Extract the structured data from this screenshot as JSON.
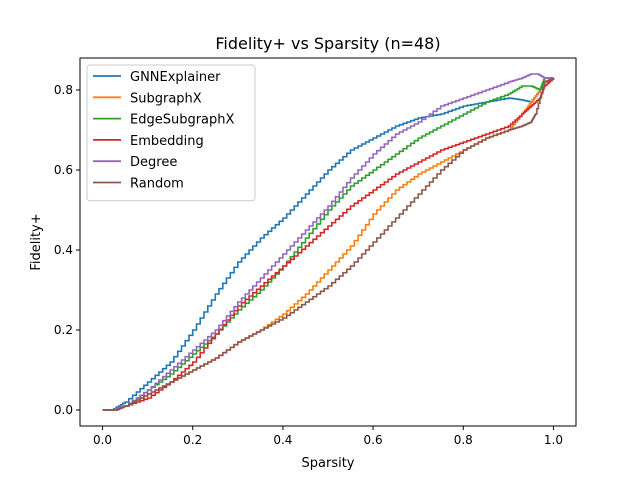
{
  "chart_data": {
    "type": "line",
    "title": "Fidelity+ vs Sparsity (n=48)",
    "xlabel": "Sparsity",
    "ylabel": "Fidelity+",
    "xlim": [
      -0.05,
      1.05
    ],
    "ylim": [
      -0.04,
      0.88
    ],
    "xticks": [
      0.0,
      0.2,
      0.4,
      0.6,
      0.8,
      1.0
    ],
    "xtick_labels": [
      "0.0",
      "0.2",
      "0.4",
      "0.6",
      "0.8",
      "1.0"
    ],
    "yticks": [
      0.0,
      0.2,
      0.4,
      0.6,
      0.8
    ],
    "ytick_labels": [
      "0.0",
      "0.2",
      "0.4",
      "0.6",
      "0.8"
    ],
    "grid": false,
    "legend_position": "top-left",
    "series": [
      {
        "name": "GNNExplainer",
        "color": "#1f77b4",
        "x": [
          0.0,
          0.02,
          0.05,
          0.1,
          0.15,
          0.2,
          0.25,
          0.3,
          0.35,
          0.4,
          0.45,
          0.5,
          0.55,
          0.6,
          0.65,
          0.7,
          0.75,
          0.8,
          0.85,
          0.9,
          0.93,
          0.95,
          0.97,
          0.98,
          1.0
        ],
        "y": [
          0.0,
          0.0,
          0.02,
          0.07,
          0.12,
          0.2,
          0.29,
          0.37,
          0.43,
          0.48,
          0.54,
          0.6,
          0.65,
          0.68,
          0.71,
          0.73,
          0.74,
          0.76,
          0.77,
          0.78,
          0.775,
          0.77,
          0.8,
          0.83,
          0.83
        ]
      },
      {
        "name": "SubgraphX",
        "color": "#ff7f0e",
        "x": [
          0.0,
          0.03,
          0.05,
          0.1,
          0.15,
          0.2,
          0.25,
          0.3,
          0.35,
          0.4,
          0.45,
          0.5,
          0.55,
          0.6,
          0.65,
          0.7,
          0.75,
          0.8,
          0.85,
          0.9,
          0.93,
          0.95,
          0.97,
          0.98,
          1.0
        ],
        "y": [
          0.0,
          0.0,
          0.01,
          0.04,
          0.07,
          0.1,
          0.13,
          0.17,
          0.2,
          0.24,
          0.29,
          0.35,
          0.41,
          0.49,
          0.55,
          0.59,
          0.62,
          0.65,
          0.68,
          0.7,
          0.74,
          0.77,
          0.8,
          0.82,
          0.83
        ]
      },
      {
        "name": "EdgeSubgraphX",
        "color": "#2ca02c",
        "x": [
          0.0,
          0.02,
          0.05,
          0.1,
          0.15,
          0.2,
          0.25,
          0.3,
          0.35,
          0.4,
          0.45,
          0.5,
          0.55,
          0.6,
          0.65,
          0.7,
          0.75,
          0.8,
          0.85,
          0.9,
          0.93,
          0.95,
          0.97,
          0.98,
          1.0
        ],
        "y": [
          0.0,
          0.0,
          0.01,
          0.05,
          0.09,
          0.14,
          0.19,
          0.25,
          0.3,
          0.36,
          0.43,
          0.5,
          0.56,
          0.6,
          0.64,
          0.68,
          0.71,
          0.74,
          0.77,
          0.79,
          0.81,
          0.81,
          0.8,
          0.83,
          0.83
        ]
      },
      {
        "name": "Embedding",
        "color": "#d62728",
        "x": [
          0.0,
          0.03,
          0.05,
          0.1,
          0.15,
          0.2,
          0.25,
          0.3,
          0.35,
          0.4,
          0.45,
          0.5,
          0.55,
          0.6,
          0.65,
          0.7,
          0.75,
          0.8,
          0.85,
          0.9,
          0.93,
          0.95,
          0.97,
          0.98,
          1.0
        ],
        "y": [
          0.0,
          0.0,
          0.01,
          0.03,
          0.07,
          0.12,
          0.19,
          0.26,
          0.31,
          0.36,
          0.41,
          0.46,
          0.51,
          0.55,
          0.59,
          0.62,
          0.65,
          0.67,
          0.69,
          0.71,
          0.74,
          0.76,
          0.78,
          0.81,
          0.83
        ]
      },
      {
        "name": "Degree",
        "color": "#9467bd",
        "x": [
          0.0,
          0.02,
          0.05,
          0.1,
          0.15,
          0.2,
          0.25,
          0.3,
          0.35,
          0.4,
          0.45,
          0.5,
          0.55,
          0.6,
          0.65,
          0.7,
          0.75,
          0.8,
          0.85,
          0.9,
          0.93,
          0.95,
          0.965,
          0.98,
          1.0
        ],
        "y": [
          0.0,
          0.0,
          0.01,
          0.05,
          0.1,
          0.15,
          0.2,
          0.27,
          0.33,
          0.39,
          0.45,
          0.51,
          0.58,
          0.64,
          0.69,
          0.72,
          0.76,
          0.78,
          0.8,
          0.82,
          0.83,
          0.84,
          0.84,
          0.83,
          0.83
        ]
      },
      {
        "name": "Random",
        "color": "#8c564b",
        "x": [
          0.0,
          0.03,
          0.05,
          0.1,
          0.15,
          0.2,
          0.25,
          0.3,
          0.35,
          0.4,
          0.45,
          0.5,
          0.55,
          0.6,
          0.65,
          0.7,
          0.75,
          0.8,
          0.85,
          0.9,
          0.93,
          0.95,
          0.96,
          0.98,
          1.0
        ],
        "y": [
          0.0,
          0.0,
          0.01,
          0.04,
          0.07,
          0.1,
          0.13,
          0.17,
          0.2,
          0.23,
          0.27,
          0.31,
          0.36,
          0.42,
          0.48,
          0.54,
          0.6,
          0.65,
          0.68,
          0.7,
          0.71,
          0.72,
          0.74,
          0.82,
          0.83
        ]
      }
    ]
  }
}
